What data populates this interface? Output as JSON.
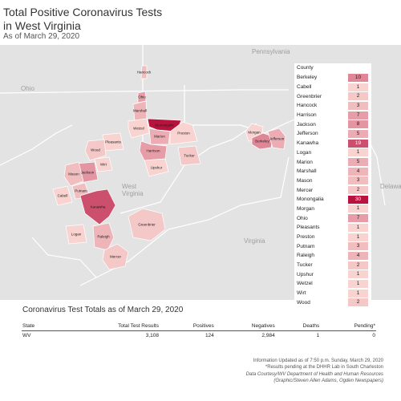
{
  "title_line1": "Total Positive Coronavirus Tests",
  "title_line2": "in West Virginia",
  "subtitle": "As of March 29, 2020",
  "map_labels": {
    "pennsylvania": "Pennsylvania",
    "ohio": "Ohio",
    "west_virginia_1": "West",
    "west_virginia_2": "Virginia",
    "virginia": "Virginia",
    "delaware": "Delaware"
  },
  "chart_data": {
    "type": "table",
    "legend_header": "County",
    "counties": [
      "Berkeley",
      "Cabell",
      "Greenbrier",
      "Hancock",
      "Harrison",
      "Jackson",
      "Jefferson",
      "Kanawha",
      "Logan",
      "Marion",
      "Marshall",
      "Mason",
      "Mercer",
      "Monongalia",
      "Morgan",
      "Ohio",
      "Pleasants",
      "Preston",
      "Putnam",
      "Raleigh",
      "Tucker",
      "Upshur",
      "Wetzel",
      "Wirt",
      "Wood"
    ],
    "values": [
      10,
      1,
      2,
      3,
      7,
      8,
      5,
      19,
      1,
      5,
      4,
      3,
      2,
      30,
      1,
      7,
      1,
      1,
      3,
      4,
      2,
      1,
      1,
      1,
      2
    ],
    "color_scale": [
      "#fde3dc",
      "#b8123f"
    ]
  },
  "map_county_labels": [
    "Hancock",
    "Ohio",
    "Marshall",
    "Wetzel",
    "Monongalia",
    "Marion",
    "Preston",
    "Harrison",
    "Tucker",
    "Upshur",
    "Pleasants",
    "Wood",
    "Wirt",
    "Jackson",
    "Mason",
    "Putnam",
    "Cabell",
    "Kanawha",
    "Logan",
    "Raleigh",
    "Greenbrier",
    "Mercer",
    "Morgan",
    "Berkeley",
    "Jefferson"
  ],
  "totals": {
    "title": "Coronavirus Test Totals as of March 29, 2020",
    "headers": [
      "State",
      "Total Test Results",
      "Positives",
      "Negatives",
      "Deaths",
      "Pending*"
    ],
    "row": [
      "WV",
      "3,108",
      "124",
      "2,984",
      "1",
      "0"
    ]
  },
  "footer": {
    "line1": "Information Updated as of 7:50 p.m. Sunday, March 29, 2020",
    "line2": "*Results pending at the DHHR Lab in South Charleston",
    "line3": "Data Courtesy/WV Department of Health and Human Resources",
    "line4": "(Graphic/Steven Allen Adams, Ogden Newspapers)"
  }
}
